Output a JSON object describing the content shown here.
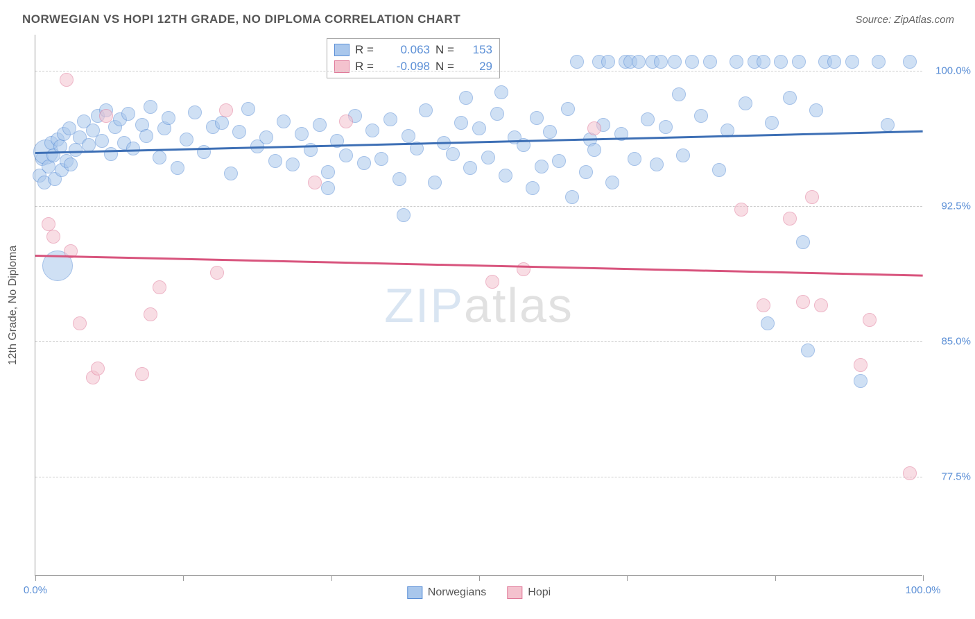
{
  "title": "NORWEGIAN VS HOPI 12TH GRADE, NO DIPLOMA CORRELATION CHART",
  "source": "Source: ZipAtlas.com",
  "y_axis_label": "12th Grade, No Diploma",
  "watermark_zip": "ZIP",
  "watermark_atlas": "atlas",
  "chart": {
    "type": "scatter",
    "background_color": "#ffffff",
    "grid_color": "#cccccc",
    "axis_color": "#999999",
    "tick_label_color": "#5b8fd6",
    "axis_label_color": "#555555",
    "xlim": [
      0,
      100
    ],
    "ylim": [
      72,
      102
    ],
    "x_ticks": [
      0,
      16.67,
      33.33,
      50,
      66.67,
      83.33,
      100
    ],
    "x_tick_labels": {
      "0": "0.0%",
      "100": "100.0%"
    },
    "y_ticks": [
      77.5,
      85.0,
      92.5,
      100.0
    ],
    "y_tick_labels": [
      "77.5%",
      "85.0%",
      "92.5%",
      "100.0%"
    ],
    "marker_radius": 10,
    "marker_opacity": 0.55,
    "marker_stroke_width": 1.2,
    "series": {
      "norwegians": {
        "label": "Norwegians",
        "fill": "#a9c7ec",
        "stroke": "#5b8fd6",
        "r": 0.063,
        "n": 153,
        "trend": {
          "y_at_x0": 95.5,
          "y_at_x100": 96.7,
          "color": "#3d6fb5",
          "width": 2.5
        },
        "points": [
          [
            0.5,
            94.2
          ],
          [
            0.8,
            95.1
          ],
          [
            1.0,
            93.8
          ],
          [
            1.2,
            95.5,
            18
          ],
          [
            1.5,
            94.7
          ],
          [
            1.8,
            96.0
          ],
          [
            2.0,
            95.3
          ],
          [
            2.2,
            94.0
          ],
          [
            2.5,
            96.2
          ],
          [
            2.5,
            89.2,
            22
          ],
          [
            2.8,
            95.8
          ],
          [
            3.0,
            94.5
          ],
          [
            3.2,
            96.5
          ],
          [
            3.5,
            95.0
          ],
          [
            3.8,
            96.8
          ],
          [
            4.0,
            94.8
          ],
          [
            4.5,
            95.6
          ],
          [
            5.0,
            96.3
          ],
          [
            5.5,
            97.2
          ],
          [
            6.0,
            95.9
          ],
          [
            6.5,
            96.7
          ],
          [
            7.0,
            97.5
          ],
          [
            7.5,
            96.1
          ],
          [
            8.0,
            97.8
          ],
          [
            8.5,
            95.4
          ],
          [
            9.0,
            96.9
          ],
          [
            9.5,
            97.3
          ],
          [
            10.0,
            96.0
          ],
          [
            10.5,
            97.6
          ],
          [
            11.0,
            95.7
          ],
          [
            12.0,
            97.0
          ],
          [
            12.5,
            96.4
          ],
          [
            13.0,
            98.0
          ],
          [
            14.0,
            95.2
          ],
          [
            14.5,
            96.8
          ],
          [
            15.0,
            97.4
          ],
          [
            16.0,
            94.6
          ],
          [
            17.0,
            96.2
          ],
          [
            18.0,
            97.7
          ],
          [
            19.0,
            95.5
          ],
          [
            20.0,
            96.9
          ],
          [
            21.0,
            97.1
          ],
          [
            22.0,
            94.3
          ],
          [
            23.0,
            96.6
          ],
          [
            24.0,
            97.9
          ],
          [
            25.0,
            95.8
          ],
          [
            26.0,
            96.3
          ],
          [
            27.0,
            95.0
          ],
          [
            28.0,
            97.2
          ],
          [
            29.0,
            94.8
          ],
          [
            30.0,
            96.5
          ],
          [
            31.0,
            95.6
          ],
          [
            32.0,
            97.0
          ],
          [
            33.0,
            94.4
          ],
          [
            33.0,
            93.5
          ],
          [
            34.0,
            96.1
          ],
          [
            35.0,
            95.3
          ],
          [
            36.0,
            97.5
          ],
          [
            37.0,
            94.9
          ],
          [
            38.0,
            96.7
          ],
          [
            39.0,
            95.1
          ],
          [
            40.0,
            97.3
          ],
          [
            41.0,
            94.0
          ],
          [
            41.5,
            92.0
          ],
          [
            42.0,
            96.4
          ],
          [
            43.0,
            95.7
          ],
          [
            44.0,
            97.8
          ],
          [
            45.0,
            93.8
          ],
          [
            46.0,
            96.0
          ],
          [
            47.0,
            95.4
          ],
          [
            48.0,
            97.1
          ],
          [
            48.5,
            98.5
          ],
          [
            49.0,
            94.6
          ],
          [
            50.0,
            96.8
          ],
          [
            51.0,
            95.2
          ],
          [
            52.0,
            97.6
          ],
          [
            52.5,
            98.8
          ],
          [
            53.0,
            94.2
          ],
          [
            54.0,
            96.3
          ],
          [
            55.0,
            95.9
          ],
          [
            56.0,
            93.5
          ],
          [
            56.5,
            97.4
          ],
          [
            57.0,
            94.7
          ],
          [
            58.0,
            96.6
          ],
          [
            59.0,
            95.0
          ],
          [
            60.0,
            97.9
          ],
          [
            60.5,
            93.0
          ],
          [
            61.0,
            100.5
          ],
          [
            62.0,
            94.4
          ],
          [
            62.5,
            96.2
          ],
          [
            63.0,
            95.6
          ],
          [
            63.5,
            100.5
          ],
          [
            64.0,
            97.0
          ],
          [
            64.5,
            100.5
          ],
          [
            65.0,
            93.8
          ],
          [
            66.0,
            96.5
          ],
          [
            66.5,
            100.5
          ],
          [
            67.0,
            100.5
          ],
          [
            67.5,
            95.1
          ],
          [
            68.0,
            100.5
          ],
          [
            69.0,
            97.3
          ],
          [
            69.5,
            100.5
          ],
          [
            70.0,
            94.8
          ],
          [
            70.5,
            100.5
          ],
          [
            71.0,
            96.9
          ],
          [
            72.0,
            100.5
          ],
          [
            72.5,
            98.7
          ],
          [
            73.0,
            95.3
          ],
          [
            74.0,
            100.5
          ],
          [
            75.0,
            97.5
          ],
          [
            76.0,
            100.5
          ],
          [
            77.0,
            94.5
          ],
          [
            78.0,
            96.7
          ],
          [
            79.0,
            100.5
          ],
          [
            80.0,
            98.2
          ],
          [
            81.0,
            100.5
          ],
          [
            82.0,
            100.5
          ],
          [
            82.5,
            86.0
          ],
          [
            83.0,
            97.1
          ],
          [
            84.0,
            100.5
          ],
          [
            85.0,
            98.5
          ],
          [
            86.0,
            100.5
          ],
          [
            86.5,
            90.5
          ],
          [
            87.0,
            84.5
          ],
          [
            88.0,
            97.8
          ],
          [
            89.0,
            100.5
          ],
          [
            90.0,
            100.5
          ],
          [
            92.0,
            100.5
          ],
          [
            93.0,
            82.8
          ],
          [
            95.0,
            100.5
          ],
          [
            96.0,
            97.0
          ],
          [
            98.5,
            100.5
          ]
        ]
      },
      "hopi": {
        "label": "Hopi",
        "fill": "#f4c2ce",
        "stroke": "#e07a9a",
        "r": -0.098,
        "n": 29,
        "trend": {
          "y_at_x0": 89.8,
          "y_at_x100": 88.7,
          "color": "#d8547d",
          "width": 2.5
        },
        "points": [
          [
            1.5,
            91.5
          ],
          [
            2.0,
            90.8
          ],
          [
            3.5,
            99.5
          ],
          [
            4.0,
            90.0
          ],
          [
            5.0,
            86.0
          ],
          [
            6.5,
            83.0
          ],
          [
            7.0,
            83.5
          ],
          [
            8.0,
            97.5
          ],
          [
            12.0,
            83.2
          ],
          [
            13.0,
            86.5
          ],
          [
            14.0,
            88.0
          ],
          [
            20.5,
            88.8
          ],
          [
            21.5,
            97.8
          ],
          [
            31.5,
            93.8
          ],
          [
            35.0,
            97.2
          ],
          [
            51.5,
            88.3
          ],
          [
            55.0,
            89.0
          ],
          [
            63.0,
            96.8
          ],
          [
            79.5,
            92.3
          ],
          [
            82.0,
            87.0
          ],
          [
            85.0,
            91.8
          ],
          [
            86.5,
            87.2
          ],
          [
            87.5,
            93.0
          ],
          [
            88.5,
            87.0
          ],
          [
            93.0,
            83.7
          ],
          [
            94.0,
            86.2
          ],
          [
            98.5,
            77.7
          ]
        ]
      }
    }
  },
  "stats_box": {
    "rows": [
      {
        "swatch_fill": "#a9c7ec",
        "swatch_stroke": "#5b8fd6",
        "r_label": "R =",
        "r_val": "0.063",
        "n_label": "N =",
        "n_val": "153"
      },
      {
        "swatch_fill": "#f4c2ce",
        "swatch_stroke": "#e07a9a",
        "r_label": "R =",
        "r_val": "-0.098",
        "n_label": "N =",
        "n_val": "29"
      }
    ]
  },
  "legend": [
    {
      "label": "Norwegians",
      "fill": "#a9c7ec",
      "stroke": "#5b8fd6"
    },
    {
      "label": "Hopi",
      "fill": "#f4c2ce",
      "stroke": "#e07a9a"
    }
  ]
}
